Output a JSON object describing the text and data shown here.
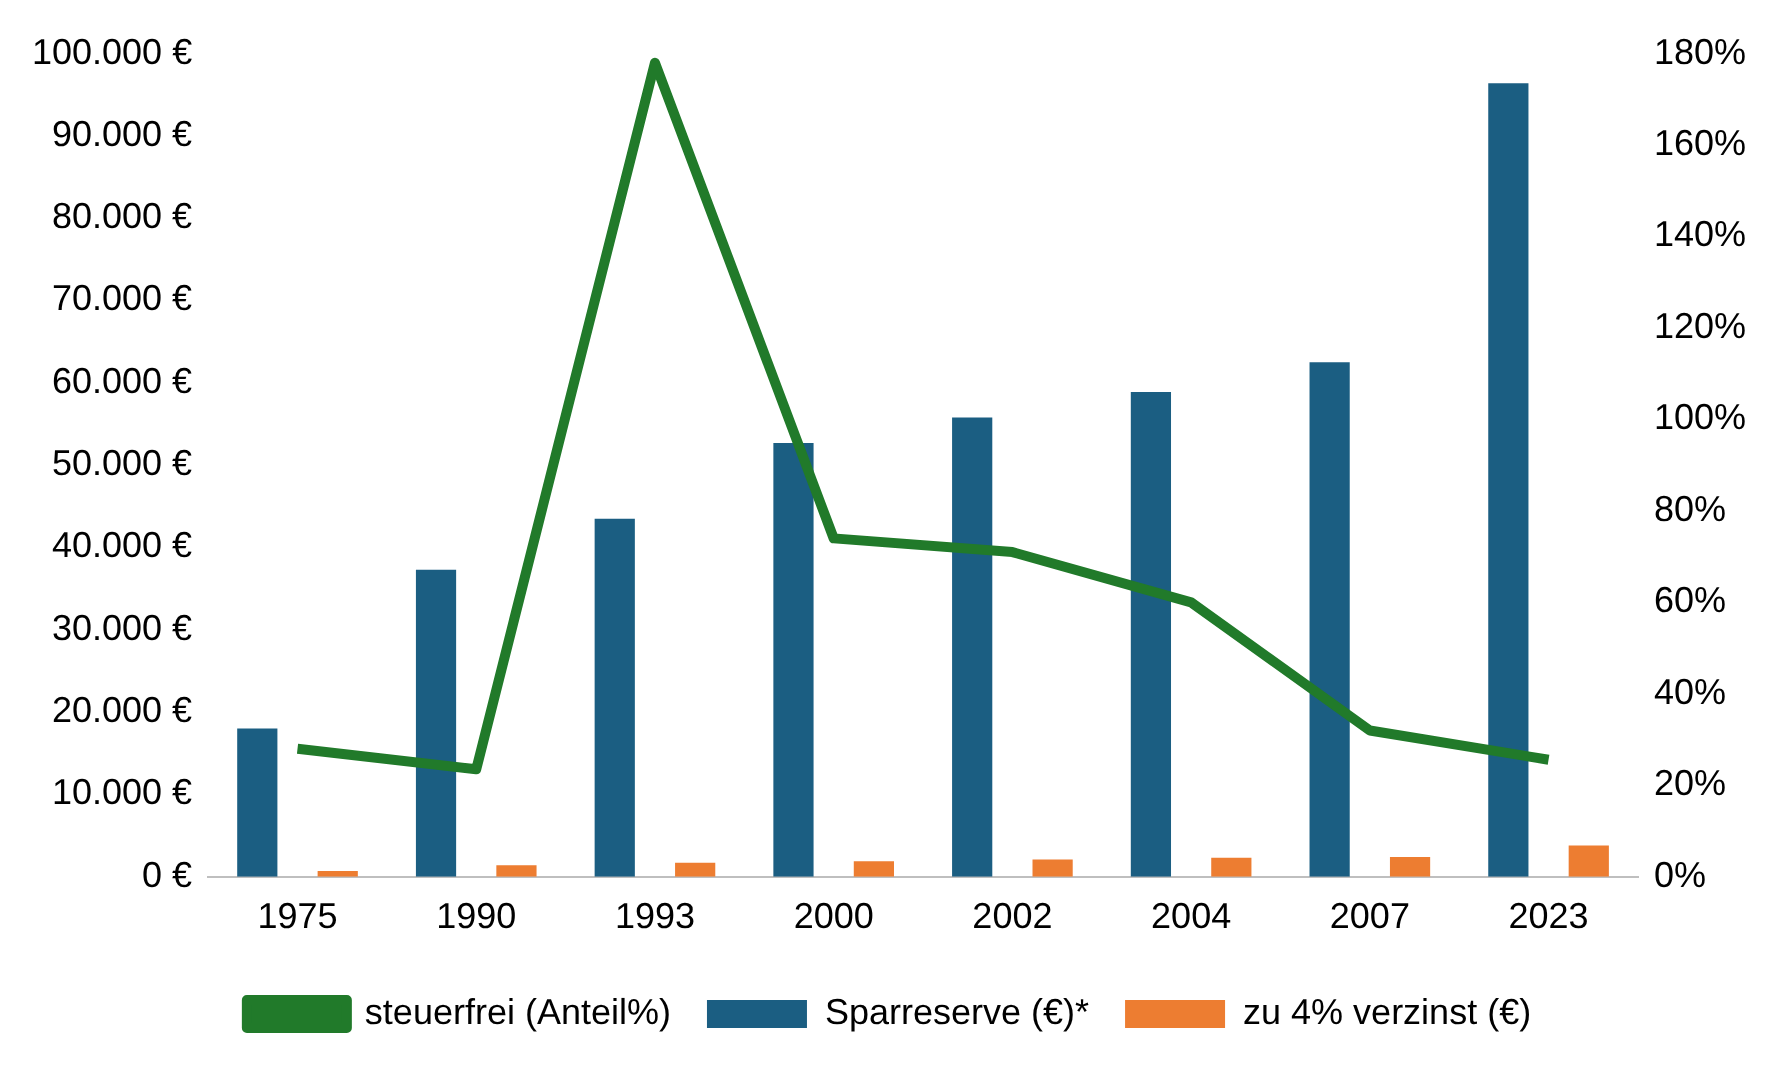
{
  "chart_data": {
    "type": "bar",
    "categories": [
      "1975",
      "1990",
      "1993",
      "2000",
      "2002",
      "2004",
      "2007",
      "2023"
    ],
    "series": [
      {
        "name": "Sparreserve (€)*",
        "color": "#1b5e82",
        "values": [
          18000,
          37300,
          43500,
          52700,
          55800,
          58900,
          62500,
          96400
        ]
      },
      {
        "name": "zu 4% verzinst (€)",
        "color": "#ed7d31",
        "values": [
          700,
          1400,
          1700,
          1900,
          2100,
          2300,
          2400,
          3800
        ]
      },
      {
        "name": "steuerfrei (Anteil%)",
        "type": "line",
        "axis": "y2",
        "color": "#217a2a",
        "values": [
          28,
          23.5,
          178,
          74,
          71,
          60,
          32,
          25.6
        ]
      }
    ],
    "ylim": [
      0,
      100000
    ],
    "yticks": [
      {
        "value": 0,
        "label": "0 €"
      },
      {
        "value": 10000,
        "label": "10.000 €"
      },
      {
        "value": 20000,
        "label": "20.000 €"
      },
      {
        "value": 30000,
        "label": "30.000 €"
      },
      {
        "value": 40000,
        "label": "40.000 €"
      },
      {
        "value": 50000,
        "label": "50.000 €"
      },
      {
        "value": 60000,
        "label": "60.000 €"
      },
      {
        "value": 70000,
        "label": "70.000 €"
      },
      {
        "value": 80000,
        "label": "80.000 €"
      },
      {
        "value": 90000,
        "label": "90.000 €"
      },
      {
        "value": 100000,
        "label": "100.000 €"
      }
    ],
    "y2lim": [
      0,
      180
    ],
    "y2ticks": [
      {
        "value": 0,
        "label": "0%"
      },
      {
        "value": 20,
        "label": "20%"
      },
      {
        "value": 40,
        "label": "40%"
      },
      {
        "value": 60,
        "label": "60%"
      },
      {
        "value": 80,
        "label": "80%"
      },
      {
        "value": 100,
        "label": "100%"
      },
      {
        "value": 120,
        "label": "120%"
      },
      {
        "value": 140,
        "label": "140%"
      },
      {
        "value": 160,
        "label": "160%"
      },
      {
        "value": 180,
        "label": "180%"
      }
    ],
    "grid": false,
    "legend": "bottom",
    "marker": "none",
    "line_style": "solid"
  }
}
